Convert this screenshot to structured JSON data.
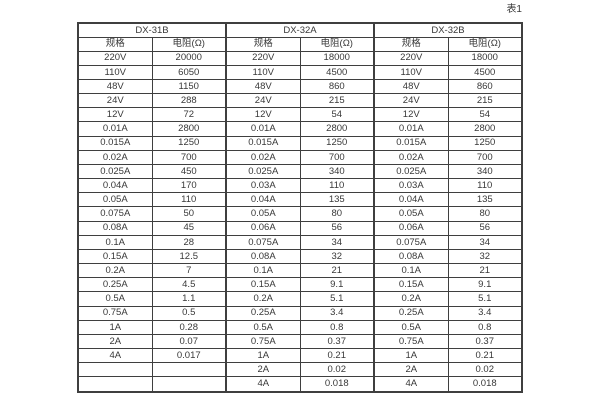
{
  "page": {
    "label": "表1"
  },
  "table": {
    "groups": [
      {
        "title": "DX-31B"
      },
      {
        "title": "DX-32A"
      },
      {
        "title": "DX-32B"
      }
    ],
    "columns": [
      "规格",
      "电阻(Ω)",
      "规格",
      "电阻(Ω)",
      "规格",
      "电阻(Ω)"
    ],
    "rows": [
      [
        "220V",
        "20000",
        "220V",
        "18000",
        "220V",
        "18000"
      ],
      [
        "110V",
        "6050",
        "110V",
        "4500",
        "110V",
        "4500"
      ],
      [
        "48V",
        "1150",
        "48V",
        "860",
        "48V",
        "860"
      ],
      [
        "24V",
        "288",
        "24V",
        "215",
        "24V",
        "215"
      ],
      [
        "12V",
        "72",
        "12V",
        "54",
        "12V",
        "54"
      ],
      [
        "0.01A",
        "2800",
        "0.01A",
        "2800",
        "0.01A",
        "2800"
      ],
      [
        "0.015A",
        "1250",
        "0.015A",
        "1250",
        "0.015A",
        "1250"
      ],
      [
        "0.02A",
        "700",
        "0.02A",
        "700",
        "0.02A",
        "700"
      ],
      [
        "0.025A",
        "450",
        "0.025A",
        "340",
        "0.025A",
        "340"
      ],
      [
        "0.04A",
        "170",
        "0.03A",
        "110",
        "0.03A",
        "110"
      ],
      [
        "0.05A",
        "110",
        "0.04A",
        "135",
        "0.04A",
        "135"
      ],
      [
        "0.075A",
        "50",
        "0.05A",
        "80",
        "0.05A",
        "80"
      ],
      [
        "0.08A",
        "45",
        "0.06A",
        "56",
        "0.06A",
        "56"
      ],
      [
        "0.1A",
        "28",
        "0.075A",
        "34",
        "0.075A",
        "34"
      ],
      [
        "0.15A",
        "12.5",
        "0.08A",
        "32",
        "0.08A",
        "32"
      ],
      [
        "0.2A",
        "7",
        "0.1A",
        "21",
        "0.1A",
        "21"
      ],
      [
        "0.25A",
        "4.5",
        "0.15A",
        "9.1",
        "0.15A",
        "9.1"
      ],
      [
        "0.5A",
        "1.1",
        "0.2A",
        "5.1",
        "0.2A",
        "5.1"
      ],
      [
        "0.75A",
        "0.5",
        "0.25A",
        "3.4",
        "0.25A",
        "3.4"
      ],
      [
        "1A",
        "0.28",
        "0.5A",
        "0.8",
        "0.5A",
        "0.8"
      ],
      [
        "2A",
        "0.07",
        "0.75A",
        "0.37",
        "0.75A",
        "0.37"
      ],
      [
        "4A",
        "0.017",
        "1A",
        "0.21",
        "1A",
        "0.21"
      ],
      [
        "",
        "",
        "2A",
        "0.02",
        "2A",
        "0.02"
      ],
      [
        "",
        "",
        "4A",
        "0.018",
        "4A",
        "0.018"
      ]
    ]
  },
  "colors": {
    "border": "#3f3f3f",
    "text": "#383838",
    "background": "#ffffff"
  }
}
